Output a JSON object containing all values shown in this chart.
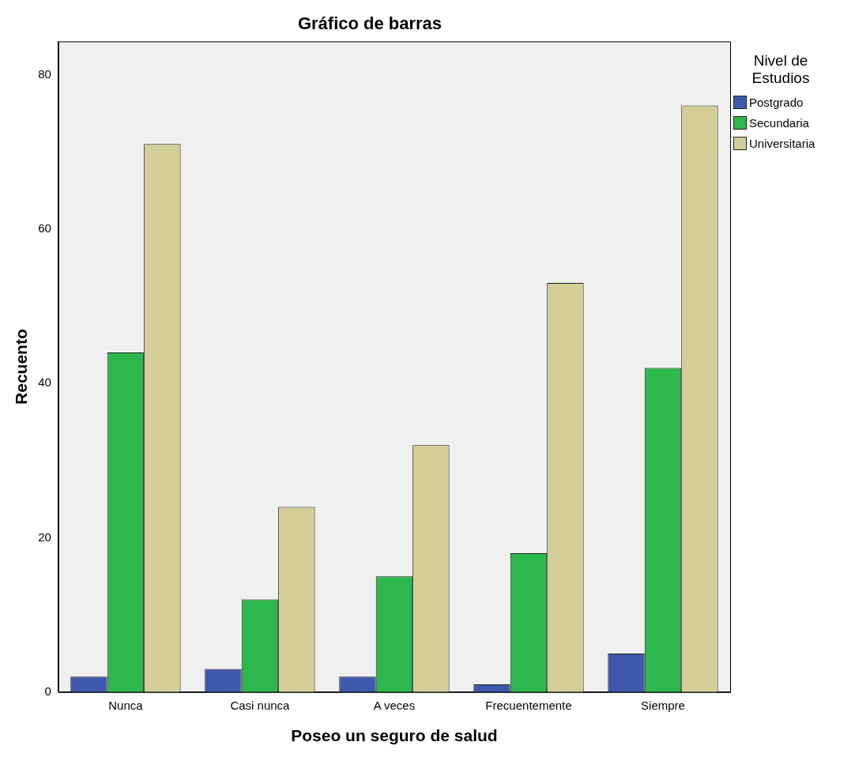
{
  "chart_data": {
    "type": "bar",
    "title": "Gráfico de barras",
    "xlabel": "Poseo un seguro de salud",
    "ylabel": "Recuento",
    "legend_title": "Nivel de Estudios",
    "categories": [
      "Nunca",
      "Casi nunca",
      "A veces",
      "Frecuentemente",
      "Siempre"
    ],
    "series": [
      {
        "name": "Postgrado",
        "color": "#3e58ac",
        "values": [
          2,
          3,
          2,
          1,
          5
        ]
      },
      {
        "name": "Secundaria",
        "color": "#2db84d",
        "values": [
          44,
          12,
          15,
          18,
          42
        ]
      },
      {
        "name": "Universitaria",
        "color": "#d3ce97",
        "values": [
          71,
          24,
          32,
          53,
          76
        ]
      }
    ],
    "ylim": [
      0,
      84.3
    ],
    "yticks": [
      0,
      20,
      40,
      60,
      80
    ],
    "grid": false,
    "legend": "top right"
  }
}
